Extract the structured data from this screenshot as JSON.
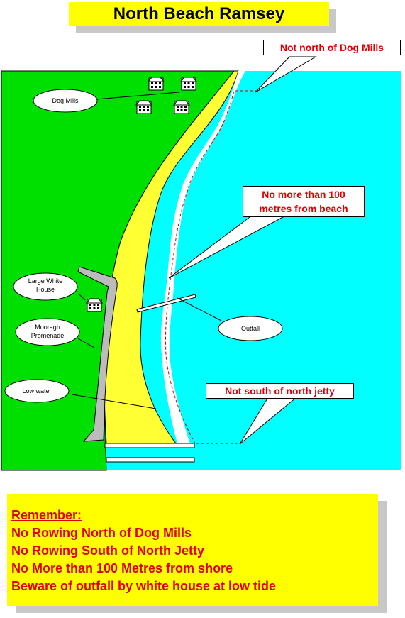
{
  "title": "North Beach Ramsey",
  "colors": {
    "land": "#00e000",
    "sea": "#00ffff",
    "beach": "#ffff33",
    "surf": "#ffffff",
    "warning_text": "#e00000",
    "highlight": "#ffff00",
    "promenade": "#bcbcbc"
  },
  "callouts": {
    "dog_mills_limit": "Not north of Dog Mills",
    "distance_line1": "No more than 100",
    "distance_line2": "metres from beach",
    "jetty_limit": "Not south of north jetty"
  },
  "map_labels": {
    "dog_mills": "Dog Mills",
    "white_house_line1": "Large White",
    "white_house_line2": "House",
    "promenade_line1": "Mooragh",
    "promenade_line2": "Promenade",
    "low_water": "Low water",
    "outfall": "Outfall"
  },
  "icons": [
    "house-icon",
    "house-icon",
    "house-icon",
    "house-icon",
    "house-icon"
  ],
  "reminder": {
    "heading": "Remember:",
    "lines": [
      "No Rowing North of Dog Mills",
      "No Rowing South of North Jetty",
      "No More than 100 Metres from shore",
      "Beware of outfall by white house at low tide"
    ]
  }
}
